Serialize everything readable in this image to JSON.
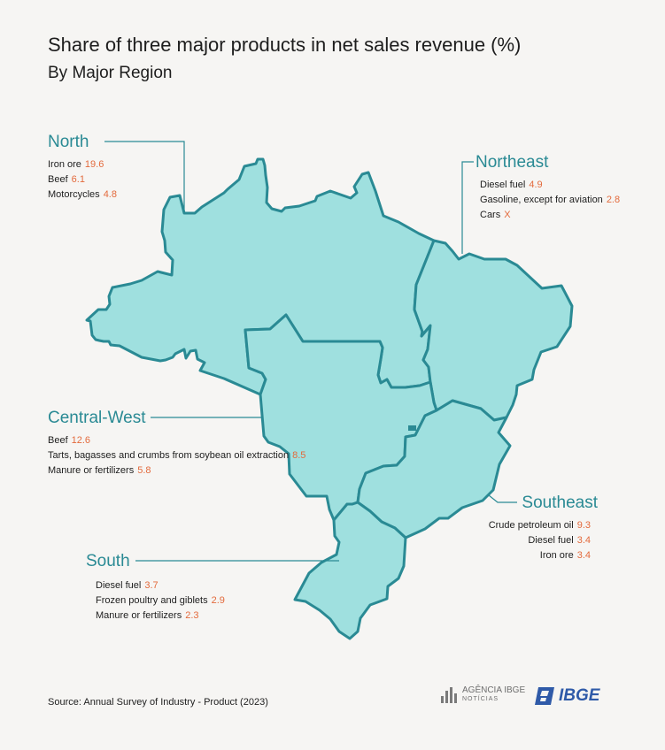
{
  "title": "Share of three major products in net sales revenue (%)",
  "subtitle": "By Major Region",
  "colors": {
    "region_fill": "#9fe0df",
    "region_stroke": "#2a8a94",
    "value": "#e36a3c",
    "label_region": "#2a8a94"
  },
  "regions": {
    "north": {
      "name": "North",
      "items": [
        {
          "label": "Iron ore",
          "value": "19.6"
        },
        {
          "label": "Beef",
          "value": "6.1"
        },
        {
          "label": "Motorcycles",
          "value": "4.8"
        }
      ]
    },
    "northeast": {
      "name": "Northeast",
      "items": [
        {
          "label": "Diesel fuel",
          "value": "4.9"
        },
        {
          "label": "Gasoline, except for aviation",
          "value": "2.8"
        },
        {
          "label": "Cars",
          "value": "X"
        }
      ]
    },
    "central_west": {
      "name": "Central-West",
      "items": [
        {
          "label": "Beef",
          "value": "12.6"
        },
        {
          "label": "Tarts, bagasses and crumbs from soybean oil extraction",
          "value": "8.5"
        },
        {
          "label": "Manure or fertilizers",
          "value": "5.8"
        }
      ]
    },
    "southeast": {
      "name": "Southeast",
      "items": [
        {
          "label": "Crude petroleum oil",
          "value": "9.3"
        },
        {
          "label": "Diesel fuel",
          "value": "3.4"
        },
        {
          "label": "Iron ore",
          "value": "3.4"
        }
      ]
    },
    "south": {
      "name": "South",
      "items": [
        {
          "label": "Diesel fuel",
          "value": "3.7"
        },
        {
          "label": "Frozen poultry and giblets",
          "value": "2.9"
        },
        {
          "label": "Manure or fertilizers",
          "value": "2.3"
        }
      ]
    }
  },
  "source": "Source: Annual Survey of Industry - Product (2023)",
  "logos": {
    "agencia_main": "AGÊNCIA IBGE",
    "agencia_sub": "NOTÍCIAS",
    "ibge": "IBGE"
  }
}
